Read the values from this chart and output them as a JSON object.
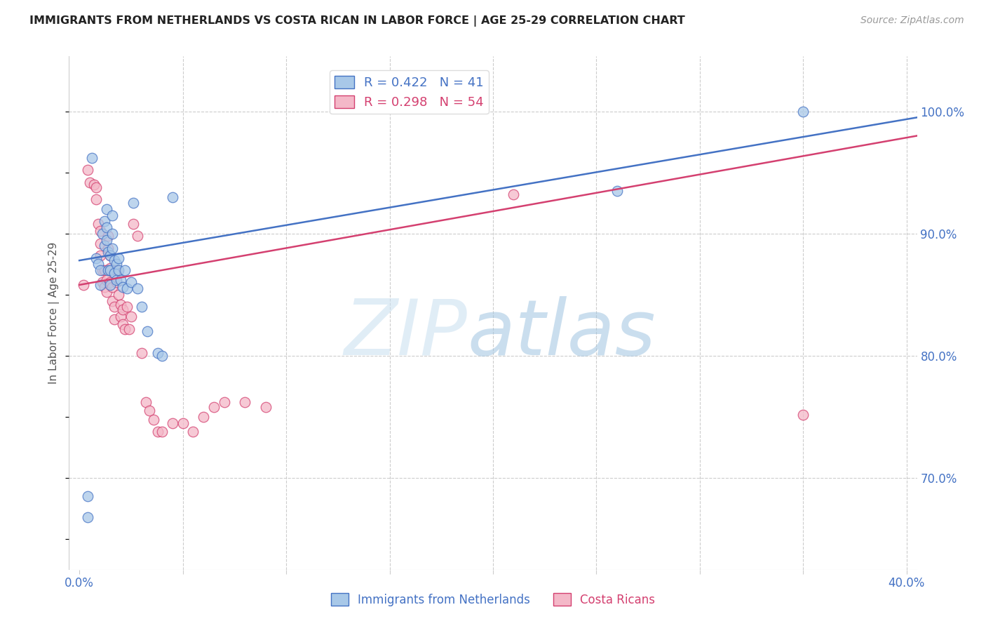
{
  "title": "IMMIGRANTS FROM NETHERLANDS VS COSTA RICAN IN LABOR FORCE | AGE 25-29 CORRELATION CHART",
  "source": "Source: ZipAtlas.com",
  "ylabel": "In Labor Force | Age 25-29",
  "xlim": [
    -0.005,
    0.405
  ],
  "ylim": [
    0.625,
    1.045
  ],
  "xticks": [
    0.0,
    0.05,
    0.1,
    0.15,
    0.2,
    0.25,
    0.3,
    0.35,
    0.4
  ],
  "xticklabels": [
    "0.0%",
    "",
    "",
    "",
    "",
    "",
    "",
    "",
    "40.0%"
  ],
  "ytick_positions": [
    1.0,
    0.9,
    0.8,
    0.7
  ],
  "ytick_labels": [
    "100.0%",
    "90.0%",
    "80.0%",
    "70.0%"
  ],
  "blue_R": 0.422,
  "blue_N": 41,
  "pink_R": 0.298,
  "pink_N": 54,
  "blue_color": "#a8c8e8",
  "pink_color": "#f4b8c8",
  "line_blue": "#4472c4",
  "line_pink": "#d44070",
  "blue_scatter_x": [
    0.004,
    0.004,
    0.006,
    0.008,
    0.009,
    0.01,
    0.01,
    0.011,
    0.012,
    0.012,
    0.013,
    0.013,
    0.013,
    0.014,
    0.014,
    0.015,
    0.015,
    0.015,
    0.016,
    0.016,
    0.016,
    0.017,
    0.017,
    0.018,
    0.018,
    0.019,
    0.019,
    0.02,
    0.021,
    0.022,
    0.023,
    0.025,
    0.026,
    0.028,
    0.03,
    0.033,
    0.038,
    0.04,
    0.045,
    0.26,
    0.35
  ],
  "blue_scatter_y": [
    0.685,
    0.668,
    0.962,
    0.88,
    0.875,
    0.87,
    0.858,
    0.9,
    0.91,
    0.89,
    0.92,
    0.905,
    0.895,
    0.885,
    0.87,
    0.882,
    0.87,
    0.858,
    0.915,
    0.9,
    0.888,
    0.878,
    0.868,
    0.875,
    0.862,
    0.88,
    0.87,
    0.862,
    0.856,
    0.87,
    0.855,
    0.86,
    0.925,
    0.855,
    0.84,
    0.82,
    0.802,
    0.8,
    0.93,
    0.935,
    1.0
  ],
  "pink_scatter_x": [
    0.002,
    0.004,
    0.005,
    0.007,
    0.008,
    0.008,
    0.009,
    0.01,
    0.01,
    0.01,
    0.011,
    0.011,
    0.012,
    0.012,
    0.013,
    0.013,
    0.014,
    0.014,
    0.015,
    0.015,
    0.015,
    0.016,
    0.016,
    0.017,
    0.017,
    0.018,
    0.018,
    0.019,
    0.02,
    0.02,
    0.021,
    0.021,
    0.022,
    0.023,
    0.024,
    0.025,
    0.026,
    0.028,
    0.03,
    0.032,
    0.034,
    0.036,
    0.038,
    0.04,
    0.045,
    0.05,
    0.055,
    0.06,
    0.065,
    0.07,
    0.08,
    0.09,
    0.21,
    0.35
  ],
  "pink_scatter_y": [
    0.858,
    0.952,
    0.942,
    0.94,
    0.938,
    0.928,
    0.908,
    0.902,
    0.892,
    0.882,
    0.87,
    0.86,
    0.87,
    0.856,
    0.862,
    0.852,
    0.898,
    0.888,
    0.882,
    0.872,
    0.86,
    0.856,
    0.845,
    0.84,
    0.83,
    0.87,
    0.86,
    0.85,
    0.842,
    0.832,
    0.838,
    0.826,
    0.822,
    0.84,
    0.822,
    0.832,
    0.908,
    0.898,
    0.802,
    0.762,
    0.755,
    0.748,
    0.738,
    0.738,
    0.745,
    0.745,
    0.738,
    0.75,
    0.758,
    0.762,
    0.762,
    0.758,
    0.932,
    0.752
  ],
  "blue_line_x0": 0.0,
  "blue_line_x1": 0.405,
  "blue_line_y0": 0.878,
  "blue_line_y1": 0.995,
  "pink_line_x0": 0.0,
  "pink_line_x1": 0.405,
  "pink_line_y0": 0.858,
  "pink_line_y1": 0.98
}
